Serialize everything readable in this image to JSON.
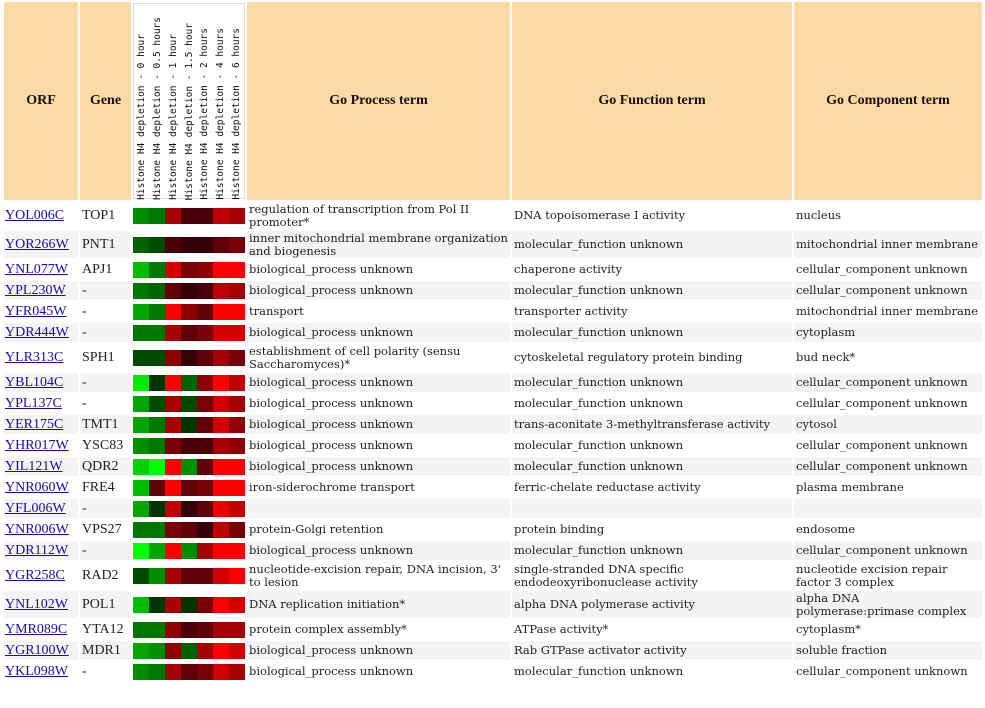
{
  "headers": {
    "orf": "ORF",
    "gene": "Gene",
    "process": "Go Process term",
    "function": "Go Function term",
    "component": "Go Component term",
    "conditions": [
      "Histone H4 depletion - 0 hour",
      "Histone H4 depletion - 0.5 hours",
      "Histone H4 depletion - 1 hour",
      "Histone H4 depletion - 1.5 hour",
      "Histone H4 depletion - 2 hours",
      "Histone H4 depletion - 4 hours",
      "Histone H4 depletion - 6 hours"
    ]
  },
  "colors": {
    "header_bg": "#fdd9a5",
    "link": "#1a0dab"
  },
  "rows": [
    {
      "orf": "YOL006C",
      "gene": "TOP1",
      "process": "regulation of transcription from Pol II promoter*",
      "function": "DNA topoisomerase I activity",
      "component": "nucleus",
      "heat": [
        -0.5,
        -0.4,
        0.6,
        0.2,
        0.2,
        0.7,
        0.6
      ]
    },
    {
      "orf": "YOR266W",
      "gene": "PNT1",
      "process": "inner mitochondrial membrane organization and biogenesis",
      "function": "molecular_function unknown",
      "component": "mitochondrial inner membrane",
      "heat": [
        -0.3,
        -0.2,
        0.2,
        0.1,
        0.1,
        0.3,
        0.4
      ]
    },
    {
      "orf": "YNL077W",
      "gene": "APJ1",
      "process": "biological_process unknown",
      "function": "chaperone activity",
      "component": "cellular_component unknown",
      "heat": [
        -0.7,
        -0.4,
        0.8,
        0.4,
        0.5,
        1,
        1
      ]
    },
    {
      "orf": "YPL230W",
      "gene": "-",
      "process": "biological_process unknown",
      "function": "molecular_function unknown",
      "component": "cellular_component unknown",
      "heat": [
        -0.4,
        -0.3,
        0.3,
        0.1,
        0.2,
        0.7,
        0.6
      ]
    },
    {
      "orf": "YFR045W",
      "gene": "-",
      "process": "transport",
      "function": "transporter activity",
      "component": "mitochondrial inner membrane",
      "heat": [
        -0.6,
        -0.4,
        1,
        0.5,
        0.3,
        1,
        1
      ]
    },
    {
      "orf": "YDR444W",
      "gene": "-",
      "process": "biological_process unknown",
      "function": "molecular_function unknown",
      "component": "cytoplasm",
      "heat": [
        -0.4,
        -0.4,
        0.6,
        0.3,
        0.4,
        0.8,
        0.8
      ]
    },
    {
      "orf": "YLR313C",
      "gene": "SPH1",
      "process": "establishment of cell polarity (sensu Saccharomyces)*",
      "function": "cytoskeletal regulatory protein binding",
      "component": "bud neck*",
      "heat": [
        -0.2,
        -0.2,
        0.5,
        0.1,
        0.3,
        0.6,
        0.4
      ]
    },
    {
      "orf": "YBL104C",
      "gene": "-",
      "process": "biological_process unknown",
      "function": "molecular_function unknown",
      "component": "cellular_component unknown",
      "heat": [
        -0.9,
        -0.1,
        1,
        -0.3,
        0.5,
        1,
        0.7
      ]
    },
    {
      "orf": "YPL137C",
      "gene": "-",
      "process": "biological_process unknown",
      "function": "molecular_function unknown",
      "component": "cellular_component unknown",
      "heat": [
        -0.6,
        -0.2,
        0.6,
        -0.2,
        0.4,
        0.8,
        0.6
      ]
    },
    {
      "orf": "YER175C",
      "gene": "TMT1",
      "process": "biological_process unknown",
      "function": "trans-aconitate 3-methyltransferase activity",
      "component": "cytosol",
      "heat": [
        -0.6,
        -0.4,
        0.6,
        -0.1,
        0.3,
        0.8,
        0.5
      ]
    },
    {
      "orf": "YHR017W",
      "gene": "YSC83",
      "process": "biological_process unknown",
      "function": "molecular_function unknown",
      "component": "cellular_component unknown",
      "heat": [
        -0.5,
        -0.4,
        0.4,
        0.2,
        0.2,
        0.6,
        0.5
      ]
    },
    {
      "orf": "YIL121W",
      "gene": "QDR2",
      "process": "biological_process unknown",
      "function": "molecular_function unknown",
      "component": "cellular_component unknown",
      "heat": [
        -0.8,
        -1,
        1,
        -0.5,
        0.3,
        1,
        1
      ]
    },
    {
      "orf": "YNR060W",
      "gene": "FRE4",
      "process": "iron-siderochrome transport",
      "function": "ferric-chelate reductase activity",
      "component": "plasma membrane",
      "heat": [
        -0.7,
        0.3,
        1,
        0.3,
        0.4,
        1,
        1
      ]
    },
    {
      "orf": "YFL006W",
      "gene": "-",
      "process": "",
      "function": "",
      "component": "",
      "heat": [
        -0.6,
        -0.1,
        0.7,
        0.1,
        0.3,
        0.9,
        0.7
      ]
    },
    {
      "orf": "YNR006W",
      "gene": "VPS27",
      "process": "protein-Golgi retention",
      "function": "protein binding",
      "component": "endosome",
      "heat": [
        -0.4,
        -0.4,
        0.4,
        0.3,
        0.1,
        0.7,
        0.4
      ]
    },
    {
      "orf": "YDR112W",
      "gene": "-",
      "process": "biological_process unknown",
      "function": "molecular_function unknown",
      "component": "cellular_component unknown",
      "heat": [
        -1,
        -0.6,
        1,
        -0.5,
        0.6,
        1,
        1
      ]
    },
    {
      "orf": "YGR258C",
      "gene": "RAD2",
      "process": "nucleotide-excision repair, DNA incision, 3' to lesion",
      "function": "single-stranded DNA specific endodeoxyribonuclease activity",
      "component": "nucleotide excision repair factor 3 complex",
      "heat": [
        -0.2,
        -0.5,
        0.6,
        0.3,
        0.3,
        0.8,
        1
      ]
    },
    {
      "orf": "YNL102W",
      "gene": "POL1",
      "process": "DNA replication initiation*",
      "function": "alpha DNA polymerase activity",
      "component": "alpha DNA polymerase:primase complex",
      "heat": [
        -0.7,
        -0.1,
        0.6,
        -0.1,
        0.4,
        1,
        0.8
      ]
    },
    {
      "orf": "YMR089C",
      "gene": "YTA12",
      "process": "protein complex assembly*",
      "function": "ATPase activity*",
      "component": "cytoplasm*",
      "heat": [
        -0.4,
        -0.4,
        0.5,
        0.2,
        0.3,
        0.6,
        0.6
      ]
    },
    {
      "orf": "YGR100W",
      "gene": "MDR1",
      "process": "biological_process unknown",
      "function": "Rab GTPase activator activity",
      "component": "soluble fraction",
      "heat": [
        -0.6,
        -0.5,
        0.5,
        -0.3,
        0.6,
        1,
        0.8
      ]
    },
    {
      "orf": "YKL098W",
      "gene": "-",
      "process": "biological_process unknown",
      "function": "molecular_function unknown",
      "component": "cellular_component unknown",
      "heat": [
        -0.5,
        -0.4,
        0.6,
        0.3,
        0.4,
        0.8,
        0.6
      ]
    }
  ]
}
